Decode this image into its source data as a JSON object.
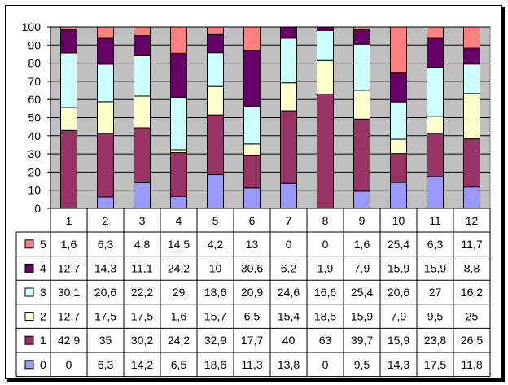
{
  "chart_data": {
    "type": "bar",
    "stacked": true,
    "percent_stacked": true,
    "title": "",
    "xlabel": "",
    "ylabel": "",
    "ylim": [
      0,
      100
    ],
    "yticks": [
      0,
      10,
      20,
      30,
      40,
      50,
      60,
      70,
      80,
      90,
      100
    ],
    "plot_background": "#c0c0c0",
    "grid": "horizontal",
    "legend": "data-table-left",
    "data_table": true,
    "categories": [
      "1",
      "2",
      "3",
      "4",
      "5",
      "6",
      "7",
      "8",
      "9",
      "10",
      "11",
      "12"
    ],
    "series": [
      {
        "name": "0",
        "color": "#9999ff",
        "values": [
          0,
          6.3,
          14.2,
          6.5,
          18.6,
          11.3,
          13.8,
          0,
          9.5,
          14.3,
          17.5,
          11.8
        ],
        "labels": [
          "0",
          "6,3",
          "14,2",
          "6,5",
          "18,6",
          "11,3",
          "13,8",
          "0",
          "9,5",
          "14,3",
          "17,5",
          "11,8"
        ]
      },
      {
        "name": "1",
        "color": "#993366",
        "values": [
          42.9,
          35,
          30.2,
          24.2,
          32.9,
          17.7,
          40,
          63,
          39.7,
          15.9,
          23.8,
          26.5
        ],
        "labels": [
          "42,9",
          "35",
          "30,2",
          "24,2",
          "32,9",
          "17,7",
          "40",
          "63",
          "39,7",
          "15,9",
          "23,8",
          "26,5"
        ]
      },
      {
        "name": "2",
        "color": "#ffffcc",
        "values": [
          12.7,
          17.5,
          17.5,
          1.6,
          15.7,
          6.5,
          15.4,
          18.5,
          15.9,
          7.9,
          9.5,
          25
        ],
        "labels": [
          "12,7",
          "17,5",
          "17,5",
          "1,6",
          "15,7",
          "6,5",
          "15,4",
          "18,5",
          "15,9",
          "7,9",
          "9,5",
          "25"
        ]
      },
      {
        "name": "3",
        "color": "#ccffff",
        "values": [
          30.1,
          20.6,
          22.2,
          29,
          18.6,
          20.9,
          24.6,
          16.6,
          25.4,
          20.6,
          27,
          16.2
        ],
        "labels": [
          "30,1",
          "20,6",
          "22,2",
          "29",
          "18,6",
          "20,9",
          "24,6",
          "16,6",
          "25,4",
          "20,6",
          "27",
          "16,2"
        ]
      },
      {
        "name": "4",
        "color": "#660066",
        "values": [
          12.7,
          14.3,
          11.1,
          24.2,
          10,
          30.6,
          6.2,
          1.9,
          7.9,
          15.9,
          15.9,
          8.8
        ],
        "labels": [
          "12,7",
          "14,3",
          "11,1",
          "24,2",
          "10",
          "30,6",
          "6,2",
          "1,9",
          "7,9",
          "15,9",
          "15,9",
          "8,8"
        ]
      },
      {
        "name": "5",
        "color": "#ff8080",
        "values": [
          1.6,
          6.3,
          4.8,
          14.5,
          4.2,
          13,
          0,
          0,
          1.6,
          25.4,
          6.3,
          11.7
        ],
        "labels": [
          "1,6",
          "6,3",
          "4,8",
          "14,5",
          "4,2",
          "13",
          "0",
          "0",
          "1,6",
          "25,4",
          "6,3",
          "11,7"
        ]
      }
    ],
    "table_row_order": [
      "5",
      "4",
      "3",
      "2",
      "1",
      "0"
    ]
  }
}
